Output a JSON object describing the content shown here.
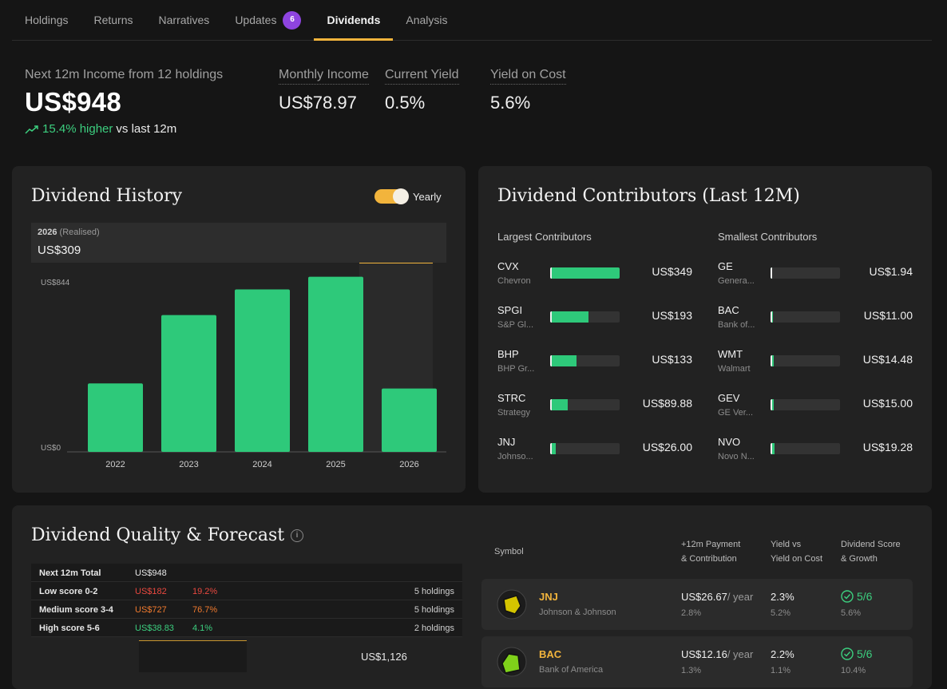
{
  "tabs": [
    {
      "label": "Holdings"
    },
    {
      "label": "Returns"
    },
    {
      "label": "Narratives"
    },
    {
      "label": "Updates",
      "badge": "6"
    },
    {
      "label": "Dividends",
      "active": true
    },
    {
      "label": "Analysis"
    }
  ],
  "summary": {
    "label": "Next 12m Income from 12 holdings",
    "value": "US$948",
    "change_pct": "15.4% higher",
    "change_suffix": "vs last 12m",
    "stats": [
      {
        "label": "Monthly Income",
        "value": "US$78.97"
      },
      {
        "label": "Current Yield",
        "value": "0.5%"
      },
      {
        "label": "Yield on Cost",
        "value": "5.6%"
      }
    ]
  },
  "history": {
    "title": "Dividend History",
    "toggle_label": "Yearly",
    "toggle_on": true,
    "tooltip_year": "2026",
    "tooltip_note": "(Realised)",
    "tooltip_value": "US$309"
  },
  "chart_data": {
    "type": "bar",
    "categories": [
      "2022",
      "2023",
      "2024",
      "2025",
      "2026"
    ],
    "values": [
      373,
      745,
      885,
      954,
      345
    ],
    "ytick_labels": [
      "US$0",
      "US$844"
    ],
    "ylim": [
      0,
      1000
    ],
    "highlight_category": "2026",
    "bar_color": "#2ec97a"
  },
  "contributors": {
    "title": "Dividend Contributors (Last 12M)",
    "largest_label": "Largest Contributors",
    "smallest_label": "Smallest Contributors",
    "largest": [
      {
        "ticker": "CVX",
        "name": "Chevron",
        "amount": "US$349",
        "share": 1.0
      },
      {
        "ticker": "SPGI",
        "name": "S&P Gl...",
        "amount": "US$193",
        "share": 0.553
      },
      {
        "ticker": "BHP",
        "name": "BHP Gr...",
        "amount": "US$133",
        "share": 0.381
      },
      {
        "ticker": "STRC",
        "name": "Strategy",
        "amount": "US$89.88",
        "share": 0.258
      },
      {
        "ticker": "JNJ",
        "name": "Johnso...",
        "amount": "US$26.00",
        "share": 0.075
      }
    ],
    "smallest": [
      {
        "ticker": "GE",
        "name": "Genera...",
        "amount": "US$1.94",
        "share": 0.006
      },
      {
        "ticker": "BAC",
        "name": "Bank of...",
        "amount": "US$11.00",
        "share": 0.032
      },
      {
        "ticker": "WMT",
        "name": "Walmart",
        "amount": "US$14.48",
        "share": 0.041
      },
      {
        "ticker": "GEV",
        "name": "GE Ver...",
        "amount": "US$15.00",
        "share": 0.043
      },
      {
        "ticker": "NVO",
        "name": "Novo N...",
        "amount": "US$19.28",
        "share": 0.055
      }
    ]
  },
  "quality": {
    "title": "Dividend Quality & Forecast",
    "rows": [
      {
        "label": "Next 12m Total",
        "amount": "US$948",
        "pct": "",
        "holdings": "",
        "color": "#e8e8e8"
      },
      {
        "label": "Low score 0-2",
        "amount": "US$182",
        "pct": "19.2%",
        "holdings": "5 holdings",
        "color": "#e9483f"
      },
      {
        "label": "Medium score 3-4",
        "amount": "US$727",
        "pct": "76.7%",
        "holdings": "5 holdings",
        "color": "#f07a2e"
      },
      {
        "label": "High score 5-6",
        "amount": "US$38.83",
        "pct": "4.1%",
        "holdings": "2 holdings",
        "color": "#3ccf7f"
      }
    ],
    "partial_bar_label": "US$1,126"
  },
  "forecast_table": {
    "headers": {
      "symbol": "Symbol",
      "payment_1": "+12m Payment",
      "payment_2": "& Contribution",
      "yield_1": "Yield vs",
      "yield_2": "Yield on Cost",
      "score_1": "Dividend Score",
      "score_2": "& Growth"
    },
    "rows": [
      {
        "symbol": "JNJ",
        "name": "Johnson & Johnson",
        "payment": "US$26.67",
        "per": "/ year",
        "contribution": "2.8%",
        "yield": "2.3%",
        "yield_on_cost": "5.2%",
        "score": "5/6",
        "growth": "5.6%",
        "logo_color": "#d4c400"
      },
      {
        "symbol": "BAC",
        "name": "Bank of America",
        "payment": "US$12.16",
        "per": "/ year",
        "contribution": "1.3%",
        "yield": "2.2%",
        "yield_on_cost": "1.1%",
        "score": "5/6",
        "growth": "10.4%",
        "logo_color": "#7fd11a"
      }
    ]
  }
}
